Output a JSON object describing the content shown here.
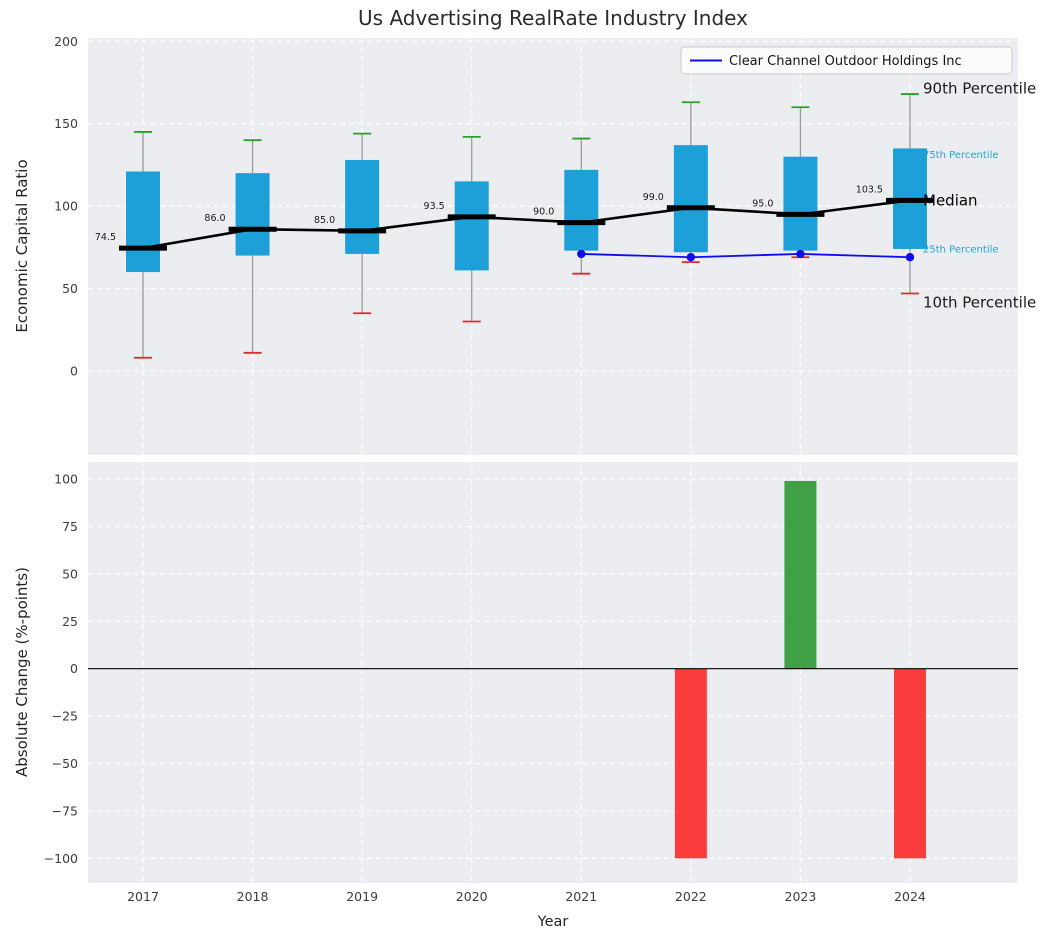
{
  "figure_title": "Us Advertising RealRate Industry Index",
  "chart_data": [
    {
      "type": "boxplot",
      "title": "Us Advertising RealRate Industry Index",
      "ylabel": "Economic Capital Ratio",
      "categories": [
        "2017",
        "2018",
        "2019",
        "2020",
        "2021",
        "2022",
        "2023",
        "2024"
      ],
      "ylim": [
        -51,
        202
      ],
      "yticks": [
        0,
        50,
        100,
        150,
        200
      ],
      "ytick_labels": [
        "0",
        "50",
        "100",
        "150",
        "200"
      ],
      "grid": true,
      "legend": {
        "position": "upper-right",
        "label": "Clear Channel Outdoor Holdings Inc"
      },
      "percentiles": {
        "p90": [
          145,
          140,
          144,
          142,
          141,
          163,
          160,
          168
        ],
        "p75": [
          121,
          120,
          128,
          115,
          122,
          137,
          130,
          135
        ],
        "median": [
          74.5,
          86.0,
          85.0,
          93.5,
          90.0,
          99.0,
          95.0,
          103.5
        ],
        "p25": [
          60,
          70,
          71,
          61,
          73,
          72,
          73,
          74
        ],
        "p10": [
          8,
          11,
          35,
          30,
          59,
          66,
          69,
          47
        ]
      },
      "median_labels": [
        "74.5",
        "86.0",
        "85.0",
        "93.5",
        "90.0",
        "99.0",
        "95.0",
        "103.5"
      ],
      "company_series": {
        "name": "Clear Channel Outdoor Holdings Inc",
        "x": [
          "2021",
          "2022",
          "2023",
          "2024"
        ],
        "values": [
          71,
          69,
          71,
          69
        ],
        "color": "#0d0df0"
      },
      "side_labels": [
        {
          "text": "90th Percentile",
          "value": 168,
          "dy": -6,
          "size": 15,
          "color": "#1a1a1a"
        },
        {
          "text": "75th Percentile",
          "value": 135,
          "dy": 6,
          "size": 10,
          "color": "#1ba7d2"
        },
        {
          "text": "Median",
          "value": 103.5,
          "dy": 0,
          "size": 15,
          "color": "#000000"
        },
        {
          "text": "25th Percentile",
          "value": 74,
          "dy": 0,
          "size": 10,
          "color": "#1ba7d2"
        },
        {
          "text": "10th Percentile",
          "value": 47,
          "dy": 9,
          "size": 15,
          "color": "#1a1a1a"
        }
      ],
      "colors": {
        "box_fill": "#1d9fd8",
        "whisker": "#999999",
        "cap_top": "#2ca02c",
        "cap_bottom": "#dd2c2c",
        "median": "#000000",
        "axes_bg": "#ecedf0",
        "grid": "#ffffff"
      }
    },
    {
      "type": "bar",
      "xlabel": "Year",
      "ylabel": "Absolute Change (%-points)",
      "categories": [
        "2017",
        "2018",
        "2019",
        "2020",
        "2021",
        "2022",
        "2023",
        "2024"
      ],
      "values": [
        0,
        0,
        0,
        0,
        0,
        -100,
        99,
        -100
      ],
      "ylim": [
        -113,
        109
      ],
      "yticks": [
        100,
        75,
        50,
        25,
        0,
        -25,
        -50,
        -75,
        -100
      ],
      "ytick_labels": [
        "100",
        "75",
        "50",
        "25",
        "0",
        "−25",
        "−50",
        "−75",
        "−100"
      ],
      "grid": true,
      "colors": {
        "positive": "#3fa045",
        "negative": "#fb3c3c",
        "zero_line": "#000000",
        "axes_bg": "#ecedf0",
        "grid": "#ffffff"
      }
    }
  ]
}
